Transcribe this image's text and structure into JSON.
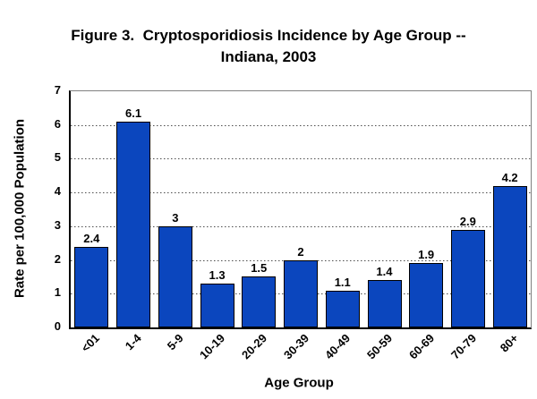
{
  "title": {
    "line1": "Figure 3.  Cryptosporidiosis Incidence by Age Group --",
    "line2": "Indiana, 2003"
  },
  "chart_data": {
    "type": "bar",
    "title": "Figure 3.  Cryptosporidiosis Incidence by Age Group -- Indiana, 2003",
    "categories": [
      "<01",
      "1-4",
      "5-9",
      "10-19",
      "20-29",
      "30-39",
      "40-49",
      "50-59",
      "60-69",
      "70-79",
      "80+"
    ],
    "values": [
      2.4,
      6.1,
      3,
      1.3,
      1.5,
      2,
      1.1,
      1.4,
      1.9,
      2.9,
      4.2
    ],
    "data_labels": [
      "2.4",
      "6.1",
      "3",
      "1.3",
      "1.5",
      "2",
      "1.1",
      "1.4",
      "1.9",
      "2.9",
      "4.2"
    ],
    "xlabel": "Age Group",
    "ylabel": "Rate per 100,000 Population",
    "ylim": [
      0,
      7
    ],
    "ytick_step": 1,
    "grid": "horizontal-dotted",
    "legend": "none",
    "bar_color": "#0B46BE",
    "bar_border_color": "#000000",
    "gridline_color": "#4d4d4d"
  }
}
